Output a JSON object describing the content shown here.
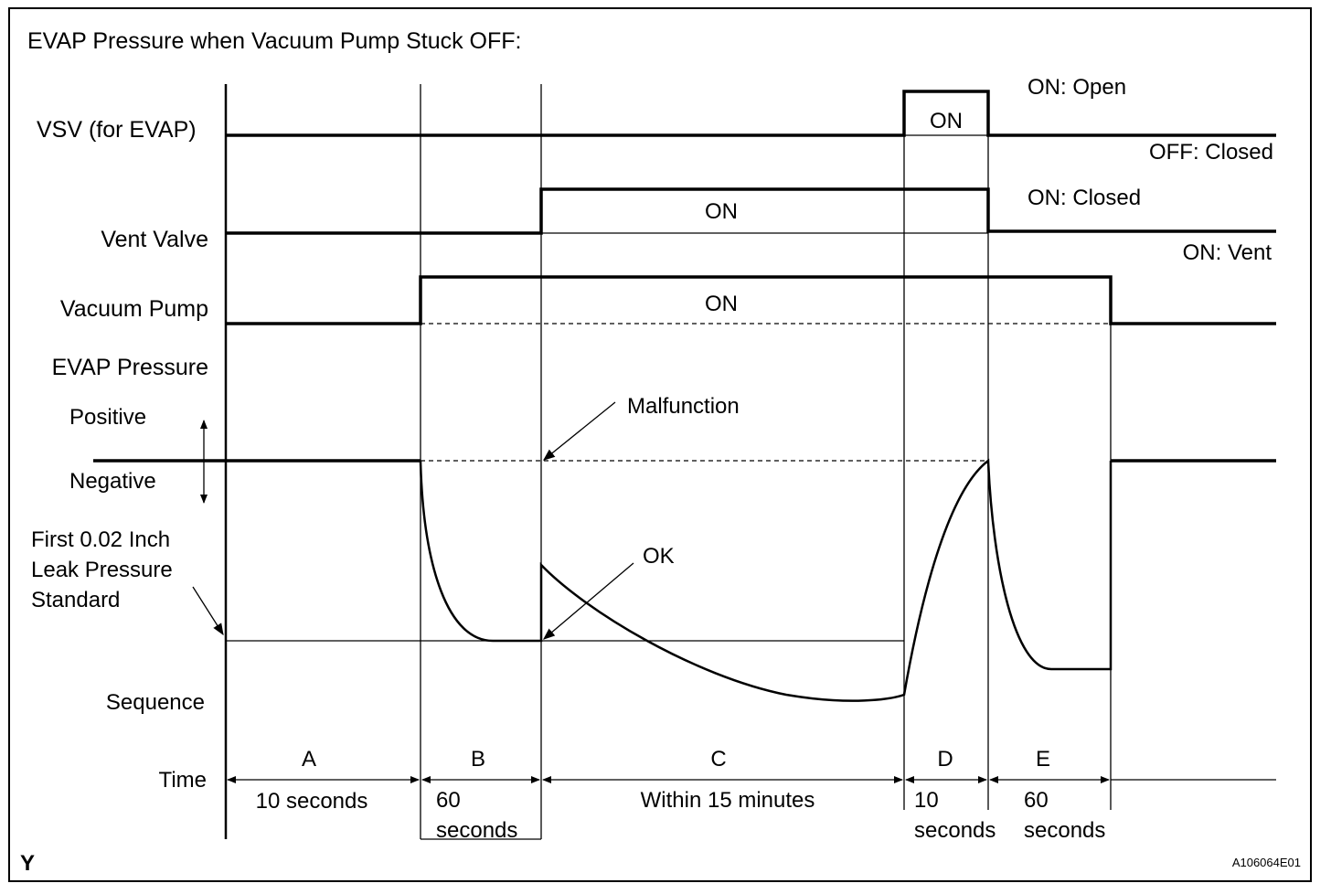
{
  "title": "EVAP Pressure when Vacuum Pump Stuck OFF:",
  "rows": {
    "vsv": {
      "label": "VSV (for EVAP)",
      "pulse_label": "ON",
      "state_on": "ON: Open",
      "state_off": "OFF: Closed"
    },
    "vent_valve": {
      "label": "Vent Valve",
      "pulse_label": "ON",
      "state_on": "ON: Closed",
      "state_off": "ON: Vent"
    },
    "vacuum_pump": {
      "label": "Vacuum Pump",
      "pulse_label": "ON"
    },
    "evap_pressure": {
      "label": "EVAP Pressure",
      "positive": "Positive",
      "negative": "Negative",
      "standard_line1": "First 0.02 Inch",
      "standard_line2": "Leak Pressure",
      "standard_line3": "Standard",
      "malfunction": "Malfunction",
      "ok": "OK"
    }
  },
  "sequence_label": "Sequence",
  "time_label": "Time",
  "phases": [
    {
      "letter": "A",
      "dur1": "10 seconds",
      "dur2": ""
    },
    {
      "letter": "B",
      "dur1": "60",
      "dur2": "seconds"
    },
    {
      "letter": "C",
      "dur1": "Within 15 minutes",
      "dur2": ""
    },
    {
      "letter": "D",
      "dur1": "10",
      "dur2": "seconds"
    },
    {
      "letter": "E",
      "dur1": "60",
      "dur2": "seconds"
    }
  ],
  "corner_mark": "Y",
  "figure_id": "A106064E01"
}
